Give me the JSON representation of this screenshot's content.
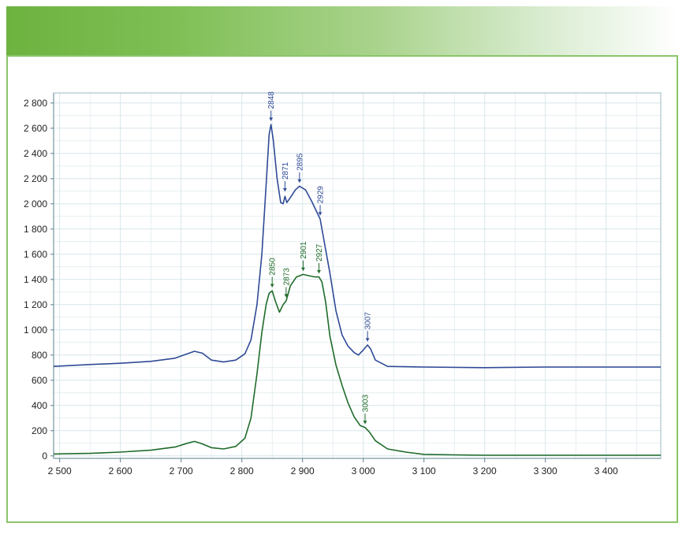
{
  "colors": {
    "banner": "#6db33f",
    "frame": "#8cc56b",
    "series_a": "#2f4a96",
    "series_b": "#1f6b2a",
    "grid": "#d7e6ea"
  },
  "chart_data": {
    "type": "line",
    "title": "",
    "xlabel": "",
    "ylabel": "",
    "xlim": [
      2490,
      3490
    ],
    "ylim": [
      -20,
      2880
    ],
    "grid": true,
    "x_ticks": [
      2500,
      2600,
      2700,
      2800,
      2900,
      3000,
      3100,
      3200,
      3300,
      3400
    ],
    "x_tick_labels": [
      "2 500",
      "2 600",
      "2 700",
      "2 800",
      "2 900",
      "3 000",
      "3 100",
      "3 200",
      "3 300",
      "3 400"
    ],
    "y_ticks": [
      0,
      200,
      400,
      600,
      800,
      1000,
      1200,
      1400,
      1600,
      1800,
      2000,
      2200,
      2400,
      2600,
      2800
    ],
    "y_tick_labels": [
      "0",
      "200",
      "400",
      "600",
      "800",
      "1 000",
      "1 200",
      "1 400",
      "1 600",
      "1 800",
      "2 000",
      "2 200",
      "2 400",
      "2 600",
      "2 800"
    ],
    "series": [
      {
        "color": "#2f4a96",
        "x": [
          2490,
          2550,
          2600,
          2650,
          2690,
          2710,
          2722,
          2735,
          2750,
          2770,
          2790,
          2805,
          2815,
          2825,
          2833,
          2840,
          2845,
          2848,
          2852,
          2858,
          2864,
          2868,
          2871,
          2874,
          2880,
          2888,
          2895,
          2905,
          2915,
          2925,
          2929,
          2935,
          2945,
          2955,
          2965,
          2975,
          2985,
          2992,
          3000,
          3007,
          3012,
          3020,
          3040,
          3100,
          3200,
          3300,
          3400,
          3490
        ],
        "y": [
          710,
          725,
          735,
          750,
          775,
          810,
          830,
          815,
          760,
          745,
          760,
          810,
          920,
          1200,
          1600,
          2150,
          2550,
          2630,
          2500,
          2200,
          2010,
          2000,
          2060,
          2010,
          2050,
          2110,
          2140,
          2110,
          2020,
          1920,
          1880,
          1720,
          1450,
          1150,
          960,
          870,
          820,
          800,
          840,
          880,
          850,
          760,
          710,
          705,
          700,
          705,
          705,
          705
        ]
      },
      {
        "color": "#1f6b2a",
        "x": [
          2490,
          2550,
          2600,
          2650,
          2690,
          2710,
          2722,
          2735,
          2750,
          2770,
          2790,
          2805,
          2815,
          2825,
          2833,
          2840,
          2845,
          2850,
          2855,
          2862,
          2868,
          2873,
          2880,
          2890,
          2901,
          2910,
          2920,
          2927,
          2932,
          2938,
          2945,
          2955,
          2965,
          2975,
          2985,
          2995,
          3003,
          3010,
          3020,
          3040,
          3070,
          3100,
          3150,
          3200,
          3300,
          3400,
          3490
        ],
        "y": [
          15,
          20,
          30,
          45,
          70,
          100,
          115,
          95,
          65,
          55,
          75,
          140,
          300,
          650,
          980,
          1200,
          1290,
          1310,
          1230,
          1140,
          1200,
          1230,
          1350,
          1420,
          1440,
          1430,
          1420,
          1420,
          1380,
          1220,
          950,
          720,
          560,
          420,
          310,
          240,
          225,
          190,
          120,
          55,
          30,
          12,
          8,
          5,
          5,
          5,
          5
        ]
      }
    ],
    "annotations": [
      {
        "label": "2848",
        "x": 2848,
        "y": 2640,
        "series": 0
      },
      {
        "label": "2871",
        "x": 2871,
        "y": 2080,
        "series": 0
      },
      {
        "label": "2895",
        "x": 2895,
        "y": 2150,
        "series": 0
      },
      {
        "label": "2929",
        "x": 2929,
        "y": 1890,
        "series": 0
      },
      {
        "label": "3007",
        "x": 3007,
        "y": 890,
        "series": 0
      },
      {
        "label": "2850",
        "x": 2850,
        "y": 1320,
        "series": 1
      },
      {
        "label": "2873",
        "x": 2873,
        "y": 1240,
        "series": 1
      },
      {
        "label": "2901",
        "x": 2901,
        "y": 1450,
        "series": 1
      },
      {
        "label": "2927",
        "x": 2927,
        "y": 1430,
        "series": 1
      },
      {
        "label": "3003",
        "x": 3003,
        "y": 235,
        "series": 1
      }
    ]
  }
}
